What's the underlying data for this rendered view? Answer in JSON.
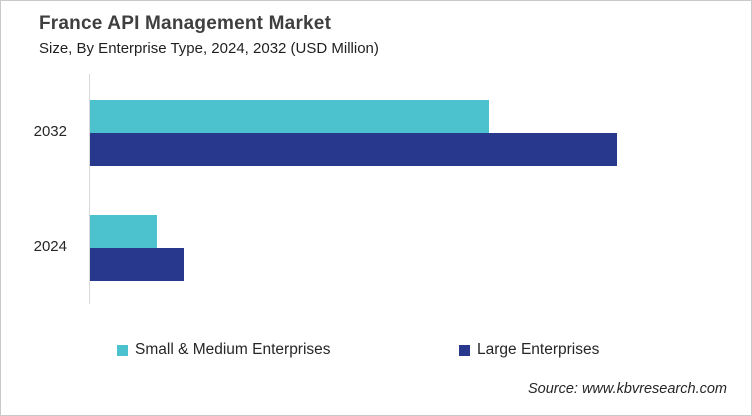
{
  "header": {
    "title": "France API Management Market",
    "subtitle": "Size, By Enterprise Type, 2024, 2032 (USD Million)"
  },
  "footer": {
    "source": "Source: www.kbvresearch.com"
  },
  "chart_data": {
    "type": "bar",
    "orientation": "horizontal",
    "title": "France API Management Market",
    "subtitle": "Size, By Enterprise Type, 2024, 2032 (USD Million)",
    "unit": "USD Million",
    "categories": [
      "2032",
      "2024"
    ],
    "series": [
      {
        "name": "Small & Medium Enterprises",
        "color": "#4BC2CE",
        "values": [
          399,
          67
        ]
      },
      {
        "name": "Large Enterprises",
        "color": "#28398D",
        "values": [
          527,
          94
        ]
      }
    ],
    "value_axis": {
      "ticks_visible": false,
      "xlim": [
        0,
        624
      ]
    },
    "category_axis": {
      "line_color": "#d9d9d9"
    },
    "legend": {
      "position": "bottom"
    },
    "grid": false
  }
}
